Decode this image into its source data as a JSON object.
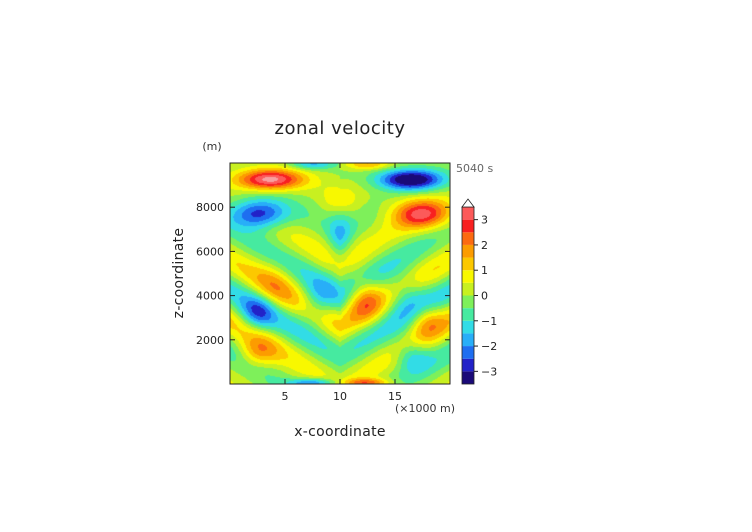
{
  "chart_data": {
    "type": "heatmap",
    "subtype": "filled-contour",
    "title": "zonal velocity",
    "xlabel": "x-coordinate",
    "ylabel": "z-coordinate",
    "x_unit": "(×1000 m)",
    "y_unit": "(m)",
    "time_label": "5040 s",
    "xlim": [
      0,
      20
    ],
    "ylim": [
      0,
      10000
    ],
    "x_ticks": [
      5,
      10,
      15
    ],
    "y_ticks": [
      2000,
      4000,
      6000,
      8000
    ],
    "colorbar": {
      "min": -3.5,
      "max": 3.5,
      "step": 0.5,
      "extend": "max",
      "tick_values": [
        3,
        2,
        1,
        0,
        -1,
        -2,
        -3
      ],
      "tick_labels": [
        "3",
        "2",
        "1",
        "0",
        "−1",
        "−2",
        "−3"
      ],
      "colors": [
        "#1a0a78",
        "#2222c8",
        "#1e6ef0",
        "#28aef8",
        "#32dce6",
        "#46eaa0",
        "#7ef05a",
        "#c8f020",
        "#f8f800",
        "#fcc800",
        "#fc9c00",
        "#fc6a10",
        "#f82020",
        "#fc5a5a",
        "#f8a0a0",
        "#ffffff"
      ]
    },
    "description_of_field": "Symmetric/antisymmetric wave pattern about x=10: strong positive jet (~+3.5) at z~9200 m on left, strong negative (~-3.5) on right; reversed bands near z~7500 m; alternating weaker bands below."
  }
}
